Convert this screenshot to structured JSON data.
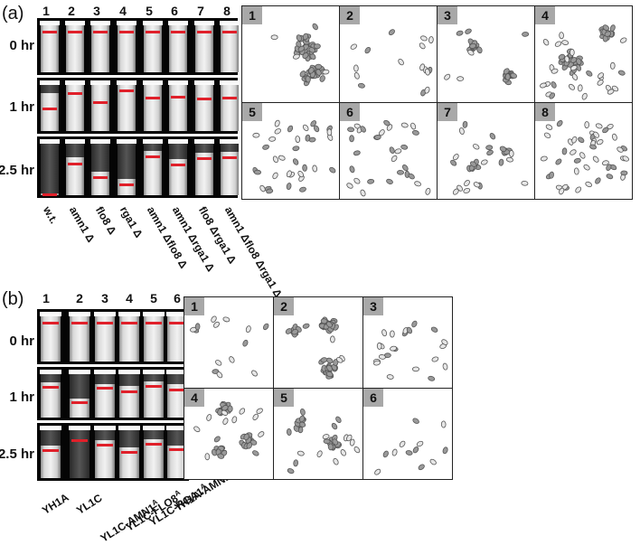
{
  "panel_a": {
    "letter": "(a)",
    "lanes": [
      "1",
      "2",
      "3",
      "4",
      "5",
      "6",
      "7",
      "8"
    ],
    "rows": [
      "0 hr",
      "1 hr",
      "2.5 hr"
    ],
    "strains": [
      "w.t.",
      "amn1 Δ",
      "flo8 Δ",
      "rga1 Δ",
      "amn1 Δflo8 Δ",
      "amn1 Δrga1 Δ",
      "flo8 Δrga1 Δ",
      "amn1 Δflo8 Δrga1 Δ"
    ],
    "micro_labels": [
      "1",
      "2",
      "3",
      "4",
      "5",
      "6",
      "7",
      "8"
    ]
  },
  "panel_b": {
    "letter": "(b)",
    "lanes": [
      "1",
      "2",
      "3",
      "4",
      "5",
      "6"
    ],
    "rows": [
      "0 hr",
      "1 hr",
      "2.5 hr"
    ],
    "strains": [
      {
        "base": "YH1A",
        "sup": ""
      },
      {
        "base": "YL1C",
        "sup": ""
      },
      {
        "base": "YL1C-AMN1",
        "sup": "A"
      },
      {
        "base": "YL1C-FLO8",
        "sup": "A"
      },
      {
        "base": "YL1C-RGA1",
        "sup": "A"
      },
      {
        "base": "YH1A-AMN1",
        "sup": "C"
      }
    ],
    "micro_labels": [
      "1",
      "2",
      "3",
      "4",
      "5",
      "6"
    ]
  },
  "colors": {
    "marker": "#e0202a",
    "badge": "#a8a8a8",
    "background": "#000000"
  }
}
